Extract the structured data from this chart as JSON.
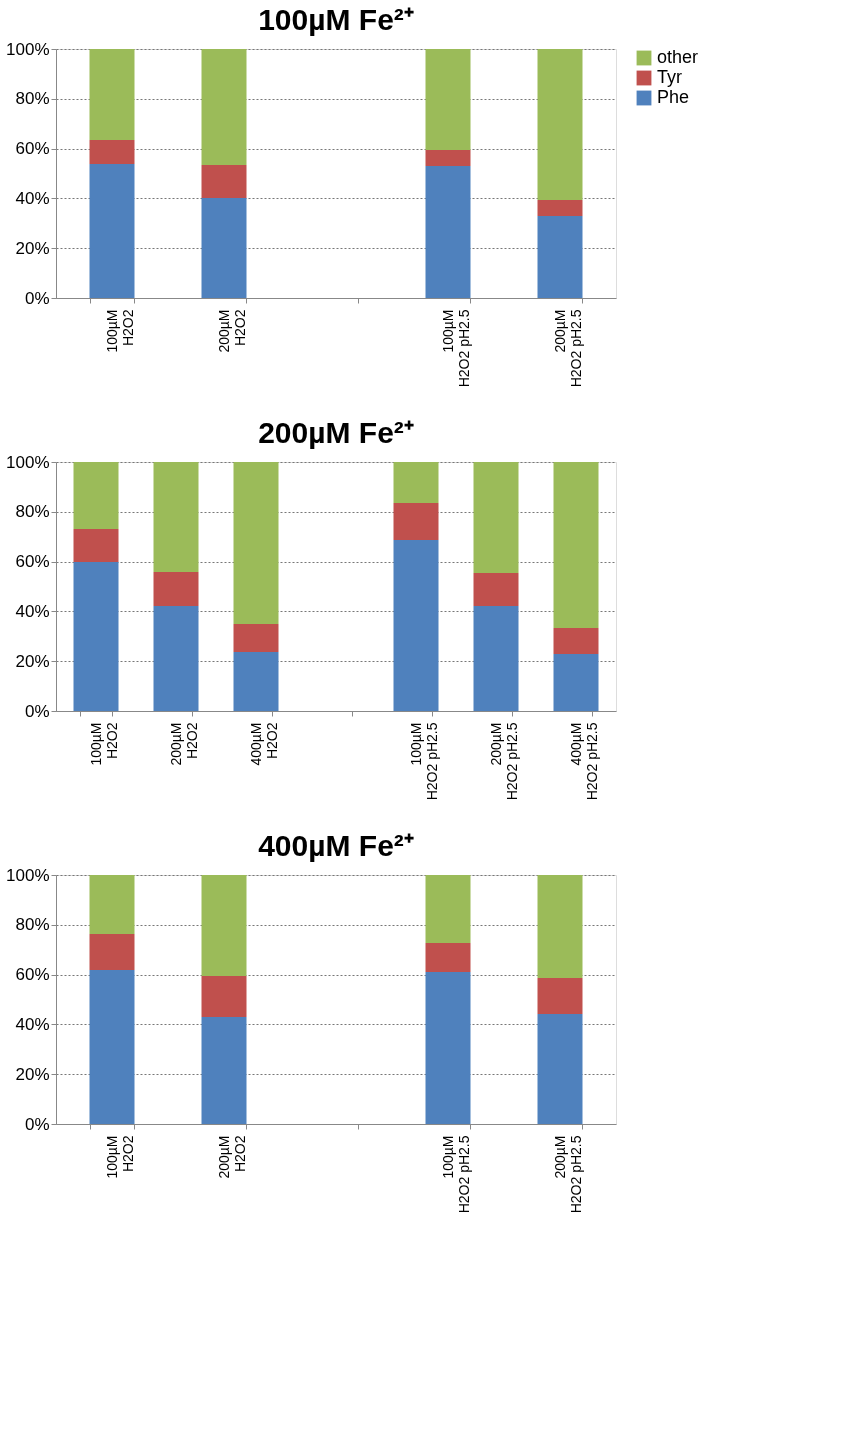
{
  "chart_data": [
    {
      "type": "bar",
      "title": "100µM Fe²⁺",
      "stacked": true,
      "grid": "y",
      "legend": "right",
      "categories": [
        "100µM\nH2O2",
        "200µM\nH2O2",
        null,
        "100µM\nH2O2 pH2.5",
        "200µM\nH2O2 pH2.5"
      ],
      "ylim": [
        0,
        100
      ],
      "yticks": [
        {
          "value": 0,
          "label": "0%"
        },
        {
          "value": 20,
          "label": "20%"
        },
        {
          "value": 40,
          "label": "40%"
        },
        {
          "value": 60,
          "label": "60%"
        },
        {
          "value": 80,
          "label": "80%"
        },
        {
          "value": 100,
          "label": "100%"
        }
      ],
      "series": [
        {
          "name": "Phe",
          "color": "#4f81bd",
          "values": [
            53.8,
            40.2,
            null,
            53.0,
            32.9
          ]
        },
        {
          "name": "Tyr",
          "color": "#c0504d",
          "values": [
            9.7,
            13.2,
            null,
            6.4,
            6.5
          ]
        },
        {
          "name": "other",
          "color": "#9bbb59",
          "values": [
            36.5,
            46.6,
            null,
            40.6,
            60.6
          ]
        }
      ]
    },
    {
      "type": "bar",
      "title": "200µM Fe²⁺",
      "stacked": true,
      "grid": "y",
      "legend": false,
      "categories": [
        "100µM\nH2O2",
        "200µM\nH2O2",
        "400µM\nH2O2",
        null,
        "100µM\nH2O2 pH2.5",
        "200µM\nH2O2 pH2.5",
        "400µM\nH2O2 pH2.5"
      ],
      "ylim": [
        0,
        100
      ],
      "yticks": [
        {
          "value": 0,
          "label": "0%"
        },
        {
          "value": 20,
          "label": "20%"
        },
        {
          "value": 40,
          "label": "40%"
        },
        {
          "value": 60,
          "label": "60%"
        },
        {
          "value": 80,
          "label": "80%"
        },
        {
          "value": 100,
          "label": "100%"
        }
      ],
      "series": [
        {
          "color": "#4f81bd",
          "values": [
            59.8,
            42.2,
            23.7,
            null,
            68.7,
            42.2,
            22.9
          ]
        },
        {
          "color": "#c0504d",
          "values": [
            13.3,
            13.6,
            11.2,
            null,
            14.8,
            13.2,
            10.4
          ]
        },
        {
          "color": "#9bbb59",
          "values": [
            26.9,
            44.2,
            65.1,
            null,
            16.5,
            44.6,
            66.7
          ]
        }
      ]
    },
    {
      "type": "bar",
      "title": "400µM Fe²⁺",
      "stacked": true,
      "grid": "y",
      "legend": false,
      "categories": [
        "100µM\nH2O2",
        "200µM\nH2O2",
        null,
        "100µM\nH2O2 pH2.5",
        "200µM\nH2O2 pH2.5"
      ],
      "ylim": [
        0,
        100
      ],
      "yticks": [
        {
          "value": 0,
          "label": "0%"
        },
        {
          "value": 20,
          "label": "20%"
        },
        {
          "value": 40,
          "label": "40%"
        },
        {
          "value": 60,
          "label": "60%"
        },
        {
          "value": 80,
          "label": "80%"
        },
        {
          "value": 100,
          "label": "100%"
        }
      ],
      "series": [
        {
          "color": "#4f81bd",
          "values": [
            61.8,
            43.0,
            null,
            61.0,
            44.2
          ]
        },
        {
          "color": "#c0504d",
          "values": [
            14.5,
            16.4,
            null,
            11.7,
            14.4
          ]
        },
        {
          "color": "#9bbb59",
          "values": [
            23.7,
            40.6,
            null,
            27.3,
            41.4
          ]
        }
      ]
    }
  ]
}
